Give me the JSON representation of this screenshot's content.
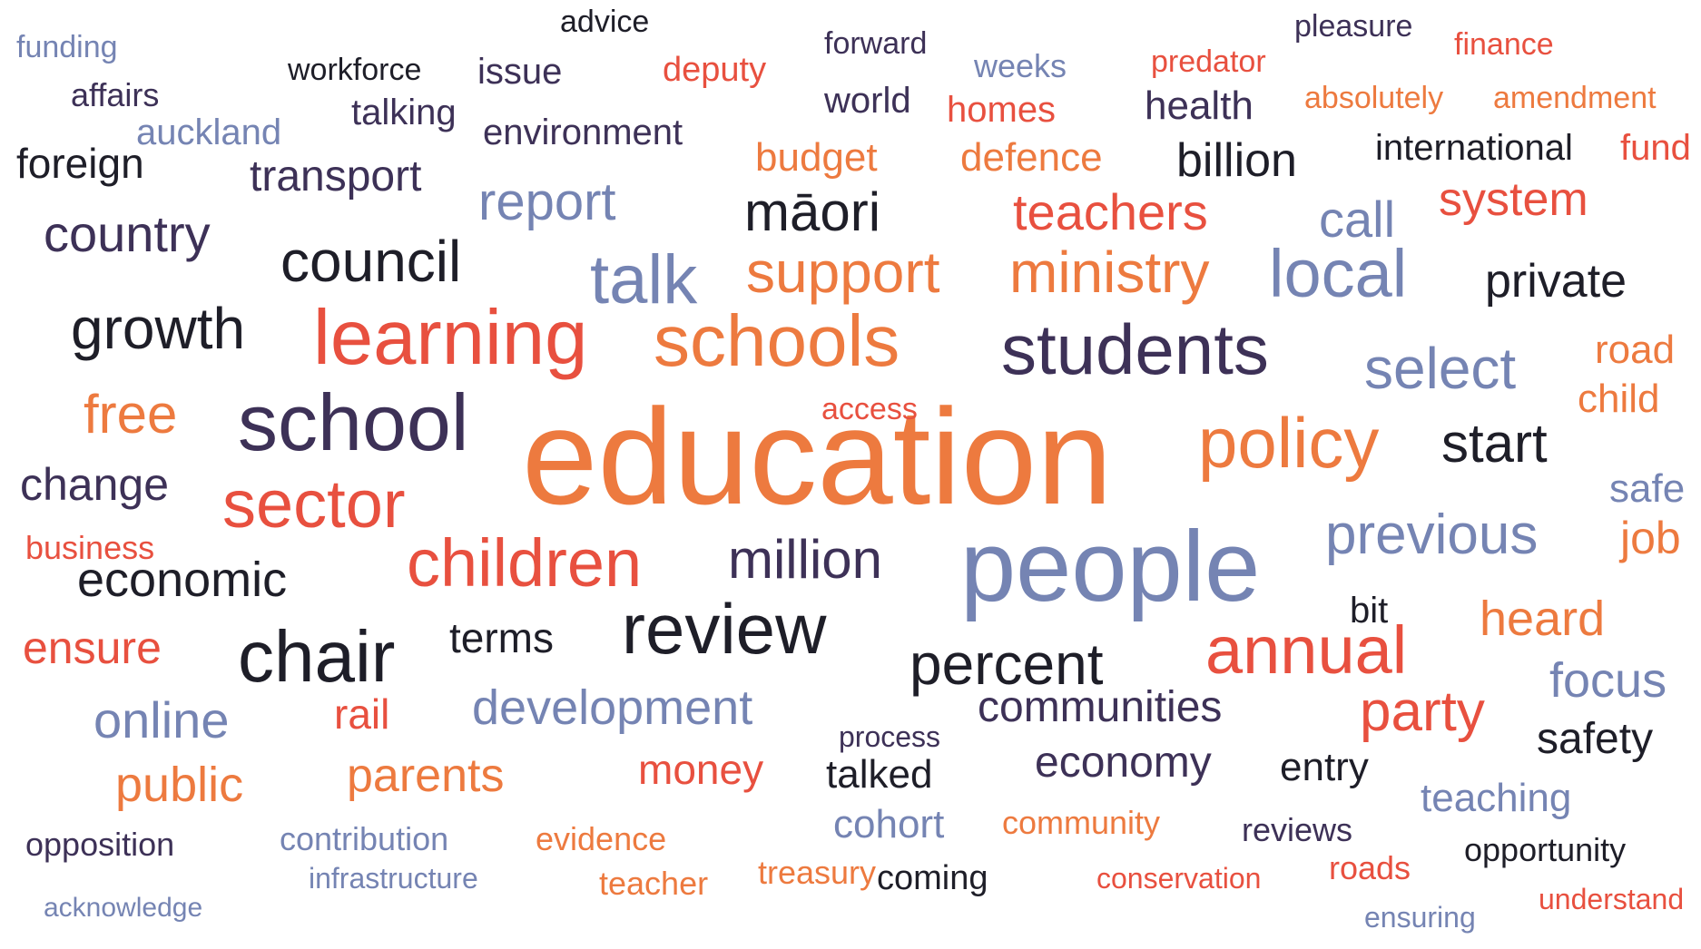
{
  "palette": {
    "orange": "#ED7A3F",
    "red": "#E8503F",
    "slate_blue": "#7584B3",
    "dark_purple": "#3D3157",
    "near_black": "#1E1E28"
  },
  "words": [
    {
      "text": "education",
      "color": "#ED7A3F"
    },
    {
      "text": "people",
      "color": "#7584B3"
    },
    {
      "text": "school",
      "color": "#3D3157"
    },
    {
      "text": "learning",
      "color": "#E8503F"
    },
    {
      "text": "schools",
      "color": "#ED7A3F"
    },
    {
      "text": "students",
      "color": "#3D3157"
    },
    {
      "text": "policy",
      "color": "#ED7A3F"
    },
    {
      "text": "review",
      "color": "#1E1E28"
    },
    {
      "text": "chair",
      "color": "#1E1E28"
    },
    {
      "text": "sector",
      "color": "#E8503F"
    },
    {
      "text": "children",
      "color": "#E8503F"
    },
    {
      "text": "talk",
      "color": "#7584B3"
    },
    {
      "text": "local",
      "color": "#7584B3"
    },
    {
      "text": "annual",
      "color": "#E8503F"
    },
    {
      "text": "support",
      "color": "#ED7A3F"
    },
    {
      "text": "ministry",
      "color": "#ED7A3F"
    },
    {
      "text": "council",
      "color": "#1E1E28"
    },
    {
      "text": "growth",
      "color": "#1E1E28"
    },
    {
      "text": "select",
      "color": "#7584B3"
    },
    {
      "text": "percent",
      "color": "#1E1E28"
    },
    {
      "text": "previous",
      "color": "#7584B3"
    },
    {
      "text": "party",
      "color": "#E8503F"
    },
    {
      "text": "million",
      "color": "#3D3157"
    },
    {
      "text": "māori",
      "color": "#1E1E28"
    },
    {
      "text": "start",
      "color": "#1E1E28"
    },
    {
      "text": "development",
      "color": "#7584B3"
    },
    {
      "text": "online",
      "color": "#7584B3"
    },
    {
      "text": "teachers",
      "color": "#E8503F"
    },
    {
      "text": "free",
      "color": "#ED7A3F"
    },
    {
      "text": "country",
      "color": "#3D3157"
    },
    {
      "text": "private",
      "color": "#1E1E28"
    },
    {
      "text": "economic",
      "color": "#1E1E28"
    },
    {
      "text": "report",
      "color": "#7584B3"
    },
    {
      "text": "system",
      "color": "#E8503F"
    },
    {
      "text": "heard",
      "color": "#ED7A3F"
    },
    {
      "text": "communities",
      "color": "#3D3157"
    },
    {
      "text": "call",
      "color": "#7584B3"
    },
    {
      "text": "change",
      "color": "#3D3157"
    },
    {
      "text": "focus",
      "color": "#7584B3"
    },
    {
      "text": "public",
      "color": "#ED7A3F"
    },
    {
      "text": "parents",
      "color": "#ED7A3F"
    },
    {
      "text": "safety",
      "color": "#1E1E28"
    },
    {
      "text": "ensure",
      "color": "#E8503F"
    },
    {
      "text": "terms",
      "color": "#1E1E28"
    },
    {
      "text": "economy",
      "color": "#3D3157"
    },
    {
      "text": "transport",
      "color": "#3D3157"
    },
    {
      "text": "billion",
      "color": "#1E1E28"
    },
    {
      "text": "money",
      "color": "#E8503F"
    },
    {
      "text": "job",
      "color": "#ED7A3F"
    },
    {
      "text": "child",
      "color": "#ED7A3F"
    },
    {
      "text": "road",
      "color": "#ED7A3F"
    },
    {
      "text": "safe",
      "color": "#7584B3"
    },
    {
      "text": "talked",
      "color": "#1E1E28"
    },
    {
      "text": "rail",
      "color": "#E8503F"
    },
    {
      "text": "foreign",
      "color": "#1E1E28"
    },
    {
      "text": "entry",
      "color": "#1E1E28"
    },
    {
      "text": "cohort",
      "color": "#7584B3"
    },
    {
      "text": "teaching",
      "color": "#7584B3"
    },
    {
      "text": "budget",
      "color": "#ED7A3F"
    },
    {
      "text": "defence",
      "color": "#ED7A3F"
    },
    {
      "text": "international",
      "color": "#1E1E28"
    },
    {
      "text": "fund",
      "color": "#E8503F"
    },
    {
      "text": "health",
      "color": "#3D3157"
    },
    {
      "text": "homes",
      "color": "#E8503F"
    },
    {
      "text": "world",
      "color": "#3D3157"
    },
    {
      "text": "talking",
      "color": "#3D3157"
    },
    {
      "text": "environment",
      "color": "#3D3157"
    },
    {
      "text": "issue",
      "color": "#3D3157"
    },
    {
      "text": "auckland",
      "color": "#7584B3"
    },
    {
      "text": "affairs",
      "color": "#3D3157"
    },
    {
      "text": "deputy",
      "color": "#E8503F"
    },
    {
      "text": "weeks",
      "color": "#7584B3"
    },
    {
      "text": "forward",
      "color": "#3D3157"
    },
    {
      "text": "predator",
      "color": "#E8503F"
    },
    {
      "text": "finance",
      "color": "#E8503F"
    },
    {
      "text": "absolutely",
      "color": "#ED7A3F"
    },
    {
      "text": "amendment",
      "color": "#ED7A3F"
    },
    {
      "text": "pleasure",
      "color": "#3D3157"
    },
    {
      "text": "advice",
      "color": "#1E1E28"
    },
    {
      "text": "workforce",
      "color": "#1E1E28"
    },
    {
      "text": "funding",
      "color": "#7584B3"
    },
    {
      "text": "access",
      "color": "#E8503F"
    },
    {
      "text": "business",
      "color": "#E8503F"
    },
    {
      "text": "bit",
      "color": "#1E1E28"
    },
    {
      "text": "process",
      "color": "#3D3157"
    },
    {
      "text": "opposition",
      "color": "#3D3157"
    },
    {
      "text": "contribution",
      "color": "#7584B3"
    },
    {
      "text": "evidence",
      "color": "#ED7A3F"
    },
    {
      "text": "community",
      "color": "#ED7A3F"
    },
    {
      "text": "reviews",
      "color": "#3D3157"
    },
    {
      "text": "opportunity",
      "color": "#1E1E28"
    },
    {
      "text": "infrastructure",
      "color": "#7584B3"
    },
    {
      "text": "teacher",
      "color": "#ED7A3F"
    },
    {
      "text": "treasury",
      "color": "#ED7A3F"
    },
    {
      "text": "coming",
      "color": "#1E1E28"
    },
    {
      "text": "conservation",
      "color": "#E8503F"
    },
    {
      "text": "roads",
      "color": "#E8503F"
    },
    {
      "text": "understand",
      "color": "#E8503F"
    },
    {
      "text": "acknowledge",
      "color": "#7584B3"
    },
    {
      "text": "ensuring",
      "color": "#7584B3"
    }
  ]
}
